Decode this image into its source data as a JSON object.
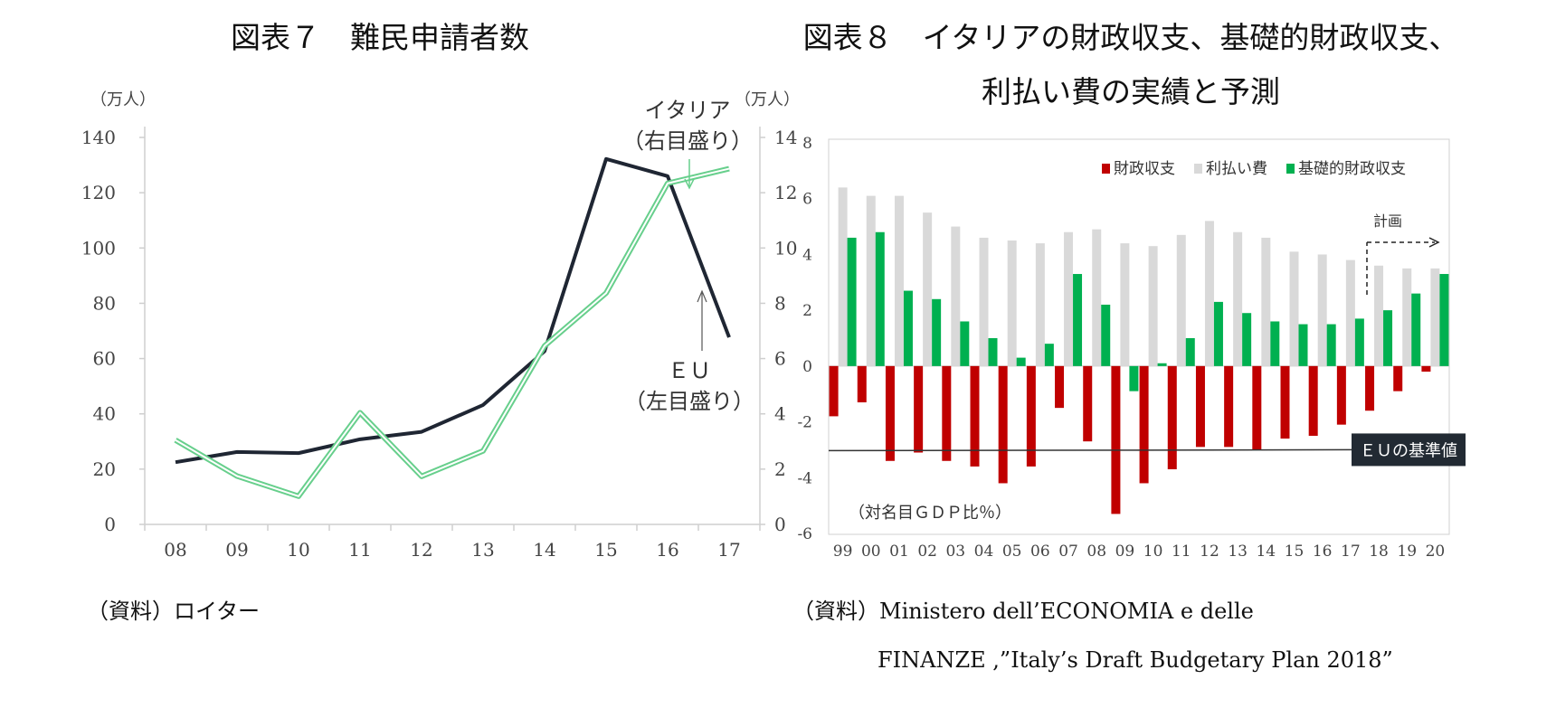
{
  "chart_data": [
    {
      "type": "line",
      "title": "図表７　難民申請者数",
      "left_axis_unit": "（万人）",
      "right_axis_unit": "（万人）",
      "categories": [
        "08",
        "09",
        "10",
        "11",
        "12",
        "13",
        "14",
        "15",
        "16",
        "17"
      ],
      "left_ylim": [
        0,
        140
      ],
      "left_ticks": [
        "0",
        "20",
        "40",
        "60",
        "80",
        "100",
        "120",
        "140"
      ],
      "right_ylim": [
        0,
        14
      ],
      "right_ticks": [
        "0",
        "2",
        "4",
        "6",
        "8",
        "10",
        "12",
        "14"
      ],
      "series": [
        {
          "name": "ＥＵ（左目盛り）",
          "axis": "left",
          "color": "#1f2633",
          "values": [
            22.5,
            26.2,
            25.8,
            30.8,
            33.5,
            43.2,
            62.7,
            132.2,
            126.0,
            67.7
          ]
        },
        {
          "name": "イタリア（右目盛り）",
          "axis": "right",
          "color": "#67cf8c",
          "values": [
            3.05,
            1.75,
            1.02,
            4.04,
            1.74,
            2.66,
            6.46,
            8.37,
            12.34,
            12.87
          ]
        }
      ],
      "annotations": [
        {
          "lines": [
            "イタリア",
            "（右目盛り）"
          ],
          "target": "イタリア"
        },
        {
          "lines": [
            "ＥＵ",
            "（左目盛り）"
          ],
          "target": "ＥＵ"
        }
      ],
      "grid": false
    },
    {
      "type": "bar",
      "title_lines": [
        "図表８　イタリアの財政収支、基礎的財政収支、",
        "利払い費の実績と予測"
      ],
      "unit_note": "（対名目ＧＤＰ比％）",
      "categories": [
        "99",
        "00",
        "01",
        "02",
        "03",
        "04",
        "05",
        "06",
        "07",
        "08",
        "09",
        "10",
        "11",
        "12",
        "13",
        "14",
        "15",
        "16",
        "17",
        "18",
        "19",
        "20"
      ],
      "ylim": [
        -6,
        8
      ],
      "yticks": [
        "-6",
        "-4",
        "-2",
        "0",
        "2",
        "4",
        "6",
        "8"
      ],
      "series": [
        {
          "name": "財政収支",
          "color": "#c00000",
          "values": [
            -1.8,
            -1.3,
            -3.4,
            -3.1,
            -3.4,
            -3.6,
            -4.2,
            -3.6,
            -1.5,
            -2.7,
            -5.3,
            -4.2,
            -3.7,
            -2.9,
            -2.9,
            -3.0,
            -2.6,
            -2.5,
            -2.1,
            -1.6,
            -0.9,
            -0.2
          ]
        },
        {
          "name": "利払い費",
          "color": "#d9d9d9",
          "values": [
            6.4,
            6.1,
            6.1,
            5.5,
            5.0,
            4.6,
            4.5,
            4.4,
            4.8,
            4.9,
            4.4,
            4.3,
            4.7,
            5.2,
            4.8,
            4.6,
            4.1,
            4.0,
            3.8,
            3.6,
            3.5,
            3.5
          ]
        },
        {
          "name": "基礎的財政収支",
          "color": "#00b050",
          "values": [
            4.6,
            4.8,
            2.7,
            2.4,
            1.6,
            1.0,
            0.3,
            0.8,
            3.3,
            2.2,
            -0.9,
            0.1,
            1.0,
            2.3,
            1.9,
            1.6,
            1.5,
            1.5,
            1.7,
            2.0,
            2.6,
            3.3
          ]
        }
      ],
      "reference_line": {
        "label": "ＥＵの基準値",
        "value": -3.0
      },
      "plan_annotation": {
        "label": "計画",
        "from_category": "17"
      },
      "legend_position": "top-right",
      "grid": false
    }
  ],
  "sources": {
    "left": "（資料）ロイター",
    "right_line1": "（資料）Ministero dell’ECONOMIA e delle",
    "right_line2": "FINANZE ,”Italy’s Draft Budgetary Plan 2018”"
  }
}
